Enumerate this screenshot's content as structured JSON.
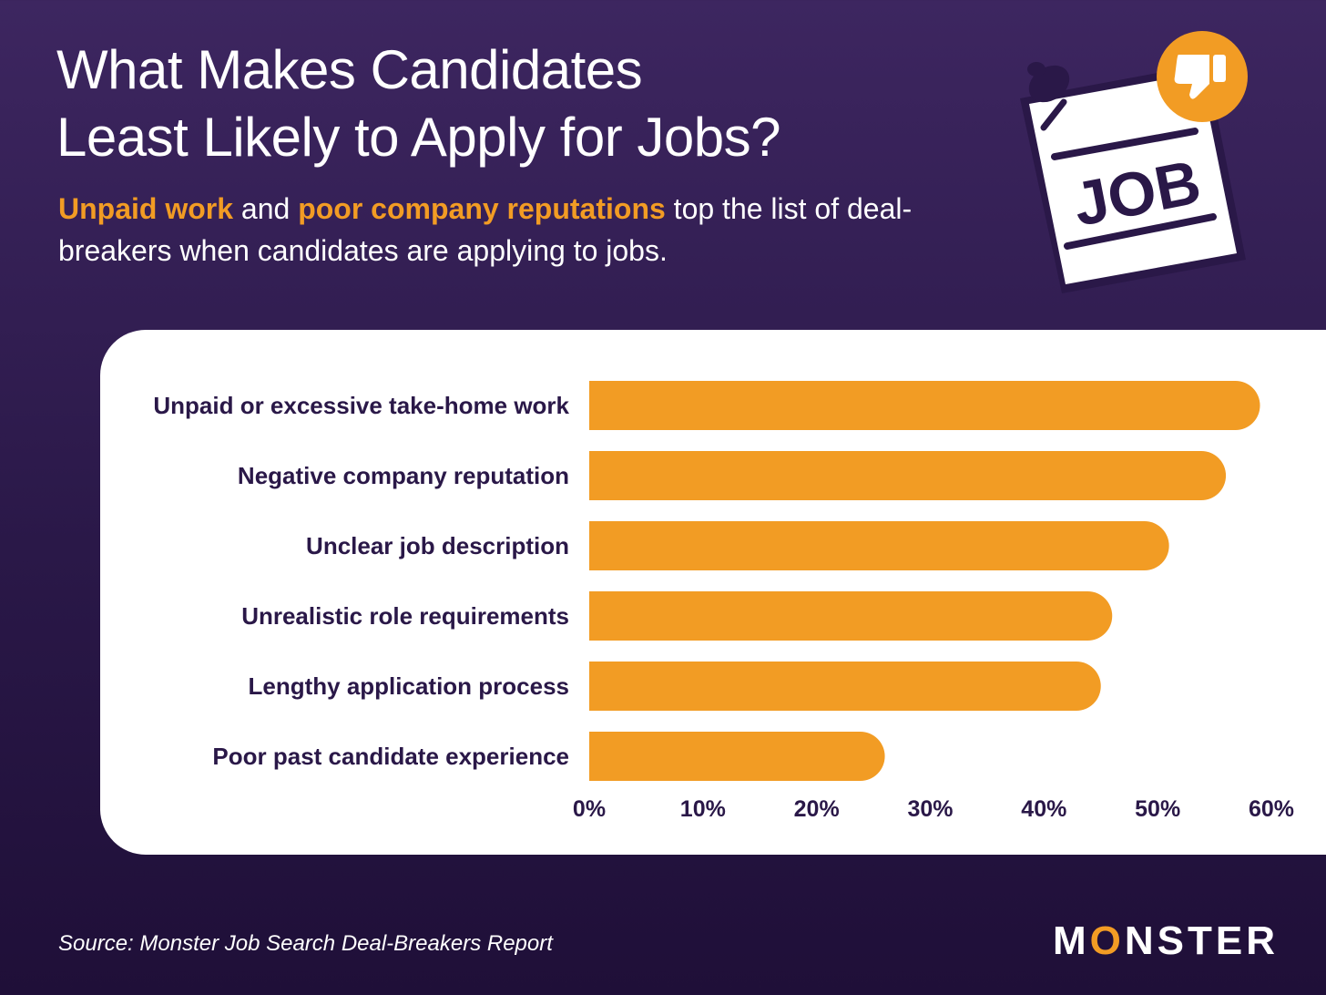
{
  "header": {
    "title_line1": "What Makes Candidates",
    "title_line2": "Least Likely to Apply for Jobs?",
    "subtitle": {
      "highlight1": "Unpaid work",
      "text1": " and ",
      "highlight2": "poor company reputations",
      "text2": " top the list of deal-breakers when candidates are applying to jobs."
    }
  },
  "graphic": {
    "sign_text": "JOB",
    "icon": "thumbs-down-icon"
  },
  "chart_data": {
    "type": "bar",
    "orientation": "horizontal",
    "categories": [
      "Unpaid or excessive take-home work",
      "Negative company reputation",
      "Unclear job description",
      "Unrealistic role requirements",
      "Lengthy application process",
      "Poor past candidate experience"
    ],
    "values": [
      59,
      56,
      51,
      46,
      45,
      26
    ],
    "xlim": [
      0,
      60
    ],
    "xticks": [
      "0%",
      "10%",
      "20%",
      "30%",
      "40%",
      "50%",
      "60%"
    ],
    "grid": false,
    "bar_color": "#f29c24",
    "label_color": "#2a1848"
  },
  "footer": {
    "source": "Source: Monster Job Search Deal-Breakers Report",
    "brand_pre": "M",
    "brand_o": "O",
    "brand_post": "NSTER"
  },
  "colors": {
    "background": "#2a1848",
    "accent": "#f29c24",
    "card": "#ffffff"
  }
}
